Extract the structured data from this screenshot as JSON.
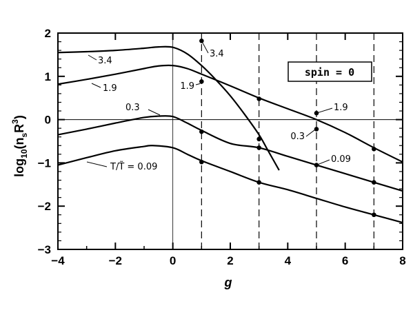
{
  "chart_data": {
    "type": "line",
    "xlabel": "g",
    "ylabel": "log10(nsR3)",
    "ylabel_parts": {
      "prefix": "log",
      "sub_10": "10",
      "paren_open": "(n",
      "sub_s": "s",
      "r": "R",
      "sup": "3",
      "paren_close": ")"
    },
    "xlim": [
      -4,
      8
    ],
    "ylim": [
      -3,
      2
    ],
    "xticks": [
      -4,
      -2,
      0,
      2,
      4,
      6,
      8
    ],
    "yticks": [
      -3,
      -2,
      -1,
      0,
      1,
      2
    ],
    "xtick_labels": [
      "−4",
      "−2",
      "0",
      "2",
      "4",
      "6",
      "8"
    ],
    "ytick_labels": [
      "−3",
      "−2",
      "−1",
      "0",
      "1",
      "2"
    ],
    "legend": {
      "text": "spin = 0",
      "placement": "top-right"
    },
    "reference_lines": {
      "horizontal_y": 0,
      "vertical_x": 0,
      "dashed_x": [
        1,
        3,
        5,
        7
      ]
    },
    "series": [
      {
        "label": "3.4",
        "x": [
          -4,
          -3,
          -2,
          -1,
          -0.5,
          0,
          0.5,
          1,
          1.5,
          2,
          2.5,
          3,
          3.3,
          3.7
        ],
        "y": [
          1.55,
          1.57,
          1.6,
          1.65,
          1.68,
          1.67,
          1.52,
          1.25,
          0.92,
          0.55,
          0.12,
          -0.35,
          -0.7,
          -1.17
        ]
      },
      {
        "label": "1.9",
        "x": [
          -4,
          -3,
          -2,
          -1,
          -0.5,
          0,
          0.5,
          1,
          2,
          3,
          4,
          5,
          6,
          7,
          8
        ],
        "y": [
          0.82,
          0.93,
          1.05,
          1.18,
          1.24,
          1.25,
          1.18,
          1.05,
          0.78,
          0.5,
          0.25,
          0.0,
          -0.3,
          -0.65,
          -0.98
        ]
      },
      {
        "label": "0.3",
        "x": [
          -4,
          -3,
          -2,
          -1,
          -0.5,
          0,
          0.5,
          1,
          2,
          3,
          4,
          5,
          6,
          7,
          8
        ],
        "y": [
          -0.35,
          -0.22,
          -0.08,
          0.05,
          0.08,
          0.07,
          -0.08,
          -0.25,
          -0.55,
          -0.65,
          -0.85,
          -1.05,
          -1.25,
          -1.45,
          -1.65
        ]
      },
      {
        "label": "T/T̃ = 0.09",
        "x": [
          -4,
          -3,
          -2,
          -1,
          -0.7,
          0,
          0.5,
          1,
          2,
          3,
          4,
          5,
          6,
          7,
          8
        ],
        "y": [
          -1.05,
          -0.88,
          -0.72,
          -0.62,
          -0.6,
          -0.65,
          -0.8,
          -0.95,
          -1.2,
          -1.45,
          -1.62,
          -1.82,
          -2.02,
          -2.2,
          -2.38
        ]
      }
    ],
    "markers": [
      {
        "x": 1,
        "y": 1.82,
        "label": "3.4"
      },
      {
        "x": 1,
        "y": 0.88,
        "label": "1.9"
      },
      {
        "x": 1,
        "y": -0.28
      },
      {
        "x": 1,
        "y": -0.98
      },
      {
        "x": 3,
        "y": 0.48
      },
      {
        "x": 3,
        "y": -0.45
      },
      {
        "x": 3,
        "y": -0.65
      },
      {
        "x": 3,
        "y": -1.45
      },
      {
        "x": 5,
        "y": 0.15,
        "label": "1.9"
      },
      {
        "x": 5,
        "y": -0.22,
        "label": "0.3"
      },
      {
        "x": 5,
        "y": -1.05,
        "label": "0.09"
      },
      {
        "x": 7,
        "y": -0.68
      },
      {
        "x": 7,
        "y": -1.45
      },
      {
        "x": 7,
        "y": -2.2
      }
    ]
  }
}
